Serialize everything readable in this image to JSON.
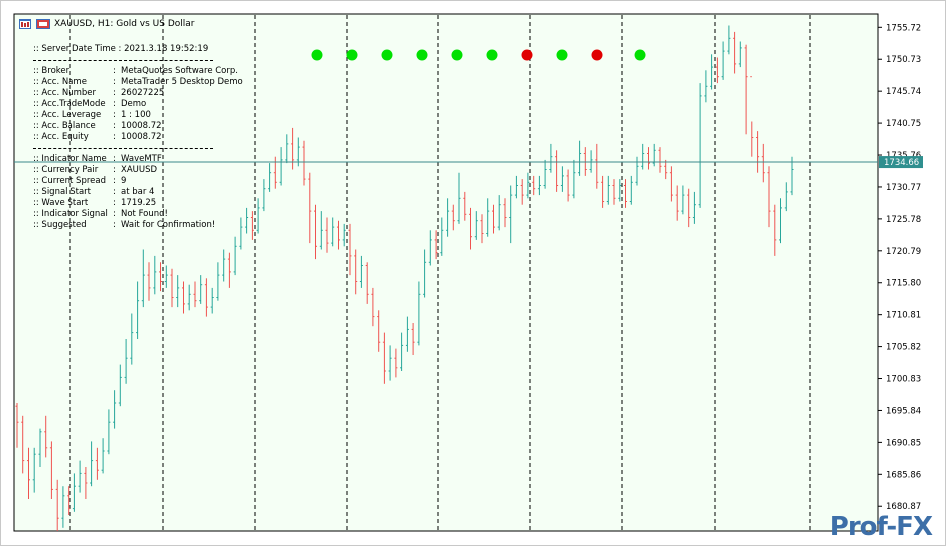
{
  "window": {
    "title": "XAUUSD, H1:  Gold vs US Dollar"
  },
  "panel": {
    "server_time_label": ":: Server Date Time : 2021.3.18     19:52:19",
    "rows_a": [
      {
        "k": ":: Broker",
        "v": "MetaQuotes Software Corp."
      },
      {
        "k": ":: Acc. Name",
        "v": "MetaTrader 5 Desktop Demo"
      },
      {
        "k": ":: Acc. Number",
        "v": "26027225"
      },
      {
        "k": ":: Acc.TradeMode",
        "v": "Demo"
      },
      {
        "k": ":: Acc. Leverage",
        "v": "1 : 100"
      },
      {
        "k": ":: Acc. Balance",
        "v": "10008.72"
      },
      {
        "k": ":: Acc. Equity",
        "v": "10008.72"
      }
    ],
    "rows_b": [
      {
        "k": ":: Indicator Name",
        "v": "WaveMTF"
      },
      {
        "k": ":: Currency Pair",
        "v": "XAUUSD"
      },
      {
        "k": ":: Current Spread",
        "v": "9"
      },
      {
        "k": ":: Signal Start",
        "v": "at bar 4"
      },
      {
        "k": ":: Wave Start",
        "v": "1719.25"
      },
      {
        "k": ":: Indicator Signal",
        "v": "Not Found!"
      },
      {
        "k": ":: Suggested",
        "v": "Wait for Confirmation!"
      }
    ],
    "colon": ":"
  },
  "signals": {
    "colors": [
      "#00e000",
      "#00e000",
      "#00e000",
      "#00e000",
      "#00e000",
      "#00e000",
      "#e00000",
      "#00e000",
      "#e00000",
      "#00e000"
    ]
  },
  "logo": {
    "text": "Prof-FX"
  },
  "chart_data": {
    "type": "candlestick",
    "symbol": "XAUUSD",
    "timeframe": "H1",
    "current_price": 1734.66,
    "y_ticks": [
      1755.72,
      1750.73,
      1745.74,
      1740.75,
      1735.76,
      1730.77,
      1725.78,
      1720.79,
      1715.8,
      1710.81,
      1705.82,
      1700.83,
      1695.84,
      1690.85,
      1685.86,
      1680.87
    ],
    "ylim": [
      1677.0,
      1757.8
    ],
    "colors": {
      "bull": "#26a69a",
      "bear": "#ef5350",
      "background": "#f5fff5",
      "price_line": "#3a8a8a",
      "price_label_bg": "#2f8f8f"
    },
    "candles": [
      [
        1696.5,
        1694.0,
        1697.0,
        1690.0
      ],
      [
        1694.0,
        1688.0,
        1695.0,
        1686.0
      ],
      [
        1688.0,
        1685.0,
        1690.0,
        1682.0
      ],
      [
        1685.0,
        1689.0,
        1690.0,
        1683.0
      ],
      [
        1689.0,
        1692.5,
        1693.0,
        1687.0
      ],
      [
        1692.5,
        1690.0,
        1695.0,
        1688.5
      ],
      [
        1690.0,
        1683.5,
        1691.0,
        1682.0
      ],
      [
        1683.5,
        1679.0,
        1685.0,
        1677.0
      ],
      [
        1679.0,
        1682.5,
        1684.0,
        1677.5
      ],
      [
        1682.5,
        1680.5,
        1684.0,
        1679.5
      ],
      [
        1680.5,
        1684.0,
        1686.0,
        1680.0
      ],
      [
        1684.0,
        1686.0,
        1688.0,
        1683.0
      ],
      [
        1686.0,
        1684.5,
        1687.0,
        1682.0
      ],
      [
        1684.5,
        1688.0,
        1691.0,
        1684.0
      ],
      [
        1688.0,
        1686.5,
        1690.0,
        1685.0
      ],
      [
        1686.5,
        1689.5,
        1691.5,
        1686.0
      ],
      [
        1689.5,
        1694.0,
        1696.0,
        1689.0
      ],
      [
        1694.0,
        1697.0,
        1699.0,
        1693.0
      ],
      [
        1697.0,
        1701.0,
        1703.0,
        1696.5
      ],
      [
        1701.0,
        1704.0,
        1707.0,
        1700.0
      ],
      [
        1704.0,
        1708.0,
        1711.0,
        1703.0
      ],
      [
        1708.0,
        1713.0,
        1716.0,
        1707.0
      ],
      [
        1713.0,
        1717.0,
        1721.0,
        1712.0
      ],
      [
        1717.0,
        1715.0,
        1719.0,
        1713.0
      ],
      [
        1715.0,
        1717.5,
        1720.0,
        1714.0
      ],
      [
        1717.5,
        1716.0,
        1719.0,
        1714.5
      ],
      [
        1716.0,
        1717.0,
        1718.5,
        1715.0
      ],
      [
        1717.0,
        1713.5,
        1718.0,
        1712.0
      ],
      [
        1713.5,
        1715.0,
        1717.0,
        1712.0
      ],
      [
        1715.0,
        1712.5,
        1716.0,
        1711.0
      ],
      [
        1712.5,
        1714.0,
        1715.5,
        1711.5
      ],
      [
        1714.0,
        1713.0,
        1716.0,
        1712.0
      ],
      [
        1713.0,
        1715.5,
        1717.0,
        1712.5
      ],
      [
        1715.5,
        1712.0,
        1716.5,
        1710.5
      ],
      [
        1712.0,
        1713.5,
        1715.0,
        1711.0
      ],
      [
        1713.5,
        1717.0,
        1719.0,
        1713.0
      ],
      [
        1717.0,
        1719.5,
        1721.0,
        1716.0
      ],
      [
        1719.5,
        1717.5,
        1720.5,
        1715.0
      ],
      [
        1717.5,
        1721.5,
        1723.0,
        1717.0
      ],
      [
        1721.5,
        1724.5,
        1726.0,
        1721.0
      ],
      [
        1724.5,
        1726.0,
        1727.5,
        1723.5
      ],
      [
        1726.0,
        1724.0,
        1727.0,
        1722.5
      ],
      [
        1724.0,
        1727.5,
        1729.0,
        1723.5
      ],
      [
        1727.5,
        1730.5,
        1732.0,
        1727.0
      ],
      [
        1730.5,
        1733.0,
        1734.5,
        1730.0
      ],
      [
        1733.0,
        1731.5,
        1735.5,
        1730.5
      ],
      [
        1731.5,
        1735.0,
        1737.0,
        1731.0
      ],
      [
        1735.0,
        1737.5,
        1739.0,
        1734.5
      ],
      [
        1737.5,
        1735.0,
        1740.0,
        1733.5
      ],
      [
        1735.0,
        1737.0,
        1738.5,
        1734.0
      ],
      [
        1737.0,
        1732.0,
        1738.0,
        1731.0
      ],
      [
        1732.0,
        1727.0,
        1733.0,
        1722.0
      ],
      [
        1727.0,
        1721.5,
        1728.0,
        1719.5
      ],
      [
        1721.5,
        1724.0,
        1727.0,
        1721.0
      ],
      [
        1724.0,
        1722.0,
        1726.0,
        1720.5
      ],
      [
        1722.0,
        1724.5,
        1726.0,
        1721.5
      ],
      [
        1724.5,
        1722.5,
        1725.5,
        1721.0
      ],
      [
        1722.5,
        1724.0,
        1725.0,
        1721.5
      ],
      [
        1724.0,
        1720.0,
        1725.0,
        1717.0
      ],
      [
        1720.0,
        1716.0,
        1721.0,
        1714.0
      ],
      [
        1716.0,
        1718.5,
        1720.0,
        1715.0
      ],
      [
        1718.5,
        1714.0,
        1719.0,
        1712.5
      ],
      [
        1714.0,
        1710.5,
        1715.0,
        1709.0
      ],
      [
        1710.5,
        1706.5,
        1711.5,
        1705.0
      ],
      [
        1706.5,
        1702.0,
        1708.0,
        1700.0
      ],
      [
        1702.0,
        1704.0,
        1706.0,
        1700.5
      ],
      [
        1704.0,
        1702.5,
        1705.5,
        1701.0
      ],
      [
        1702.5,
        1706.0,
        1708.0,
        1702.0
      ],
      [
        1706.0,
        1708.5,
        1710.5,
        1705.0
      ],
      [
        1708.5,
        1706.5,
        1709.5,
        1704.5
      ],
      [
        1706.5,
        1714.0,
        1716.0,
        1706.0
      ],
      [
        1714.0,
        1719.0,
        1721.0,
        1713.5
      ],
      [
        1719.0,
        1722.5,
        1724.0,
        1718.5
      ],
      [
        1722.5,
        1720.5,
        1724.0,
        1719.5
      ],
      [
        1720.5,
        1724.0,
        1726.0,
        1720.0
      ],
      [
        1724.0,
        1727.0,
        1729.0,
        1723.0
      ],
      [
        1727.0,
        1725.5,
        1728.0,
        1724.0
      ],
      [
        1725.5,
        1729.0,
        1733.0,
        1725.0
      ],
      [
        1729.0,
        1726.5,
        1730.0,
        1725.5
      ],
      [
        1726.5,
        1723.0,
        1727.5,
        1721.0
      ],
      [
        1723.0,
        1725.5,
        1727.0,
        1722.5
      ],
      [
        1725.5,
        1723.5,
        1726.5,
        1722.0
      ],
      [
        1723.5,
        1727.0,
        1729.0,
        1723.0
      ],
      [
        1727.0,
        1724.5,
        1728.0,
        1723.5
      ],
      [
        1724.5,
        1728.0,
        1729.5,
        1724.0
      ],
      [
        1728.0,
        1726.0,
        1729.0,
        1724.5
      ],
      [
        1726.0,
        1729.5,
        1731.0,
        1722.0
      ],
      [
        1729.5,
        1731.0,
        1732.5,
        1729.0
      ],
      [
        1731.0,
        1729.5,
        1732.0,
        1728.0
      ],
      [
        1729.5,
        1731.5,
        1733.0,
        1729.0
      ],
      [
        1731.5,
        1730.5,
        1732.5,
        1729.5
      ],
      [
        1730.5,
        1731.0,
        1732.5,
        1729.5
      ],
      [
        1731.0,
        1733.5,
        1735.0,
        1730.5
      ],
      [
        1733.5,
        1735.5,
        1737.5,
        1733.0
      ],
      [
        1735.5,
        1731.0,
        1736.5,
        1730.0
      ],
      [
        1731.0,
        1732.5,
        1734.0,
        1730.0
      ],
      [
        1732.5,
        1729.5,
        1733.5,
        1728.5
      ],
      [
        1729.5,
        1733.0,
        1735.0,
        1729.0
      ],
      [
        1733.0,
        1736.0,
        1738.0,
        1732.5
      ],
      [
        1736.0,
        1733.5,
        1737.0,
        1732.5
      ],
      [
        1733.5,
        1735.0,
        1736.5,
        1733.0
      ],
      [
        1735.0,
        1731.5,
        1737.5,
        1730.5
      ],
      [
        1731.5,
        1728.5,
        1732.5,
        1727.5
      ],
      [
        1728.5,
        1731.0,
        1732.5,
        1728.0
      ],
      [
        1731.0,
        1729.0,
        1732.0,
        1728.0
      ],
      [
        1729.0,
        1731.0,
        1732.0,
        1728.5
      ],
      [
        1731.0,
        1728.5,
        1732.0,
        1727.5
      ],
      [
        1728.5,
        1731.5,
        1732.5,
        1728.0
      ],
      [
        1731.5,
        1734.0,
        1735.5,
        1731.0
      ],
      [
        1734.0,
        1736.0,
        1737.5,
        1733.5
      ],
      [
        1736.0,
        1734.5,
        1737.0,
        1733.5
      ],
      [
        1734.5,
        1736.5,
        1737.5,
        1734.0
      ],
      [
        1736.5,
        1734.0,
        1737.0,
        1733.0
      ],
      [
        1734.0,
        1733.0,
        1735.0,
        1732.0
      ],
      [
        1733.0,
        1729.5,
        1734.0,
        1728.5
      ],
      [
        1729.5,
        1727.0,
        1731.0,
        1725.5
      ],
      [
        1727.0,
        1729.5,
        1731.0,
        1726.5
      ],
      [
        1729.5,
        1726.0,
        1730.5,
        1724.5
      ],
      [
        1726.0,
        1728.0,
        1730.0,
        1725.0
      ],
      [
        1728.0,
        1745.0,
        1747.0,
        1727.5
      ],
      [
        1745.0,
        1746.5,
        1749.0,
        1744.0
      ],
      [
        1746.5,
        1749.5,
        1751.5,
        1746.0
      ],
      [
        1749.5,
        1748.0,
        1751.0,
        1747.0
      ],
      [
        1748.0,
        1752.0,
        1753.5,
        1747.5
      ],
      [
        1752.0,
        1754.0,
        1756.0,
        1751.5
      ],
      [
        1754.0,
        1750.0,
        1755.0,
        1748.5
      ],
      [
        1750.0,
        1752.5,
        1753.5,
        1749.5
      ],
      [
        1752.5,
        1748.0,
        1753.0,
        1739.0
      ],
      [
        1748.0,
        1738.5,
        1741.0,
        1735.5
      ],
      [
        1738.5,
        1735.5,
        1739.5,
        1733.0
      ],
      [
        1735.5,
        1733.0,
        1737.5,
        1731.5
      ],
      [
        1733.0,
        1727.0,
        1734.0,
        1724.5
      ],
      [
        1727.0,
        1722.5,
        1728.0,
        1720.0
      ],
      [
        1722.5,
        1727.5,
        1729.0,
        1722.0
      ],
      [
        1727.5,
        1730.0,
        1731.5,
        1727.0
      ],
      [
        1730.0,
        1733.5,
        1735.5,
        1729.5
      ]
    ]
  }
}
